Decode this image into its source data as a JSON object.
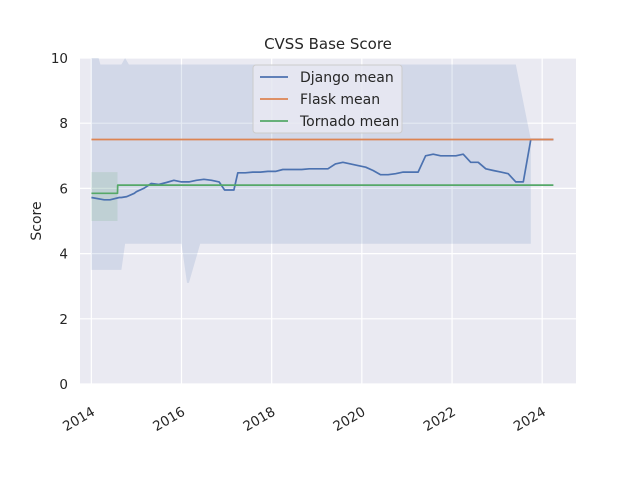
{
  "chart_data": {
    "type": "line",
    "title": "CVSS Base Score",
    "xlabel": "",
    "ylabel": "Score",
    "xlim": [
      "2013-10-01",
      "2024-10-01"
    ],
    "ylim": [
      0,
      10
    ],
    "xticks": [
      "2014",
      "2016",
      "2018",
      "2020",
      "2022",
      "2024"
    ],
    "yticks": [
      "0",
      "2",
      "4",
      "6",
      "8",
      "10"
    ],
    "grid": true,
    "legend_position": "top-center",
    "series": [
      {
        "name": "Django mean",
        "color": "#4c72b0",
        "x": [
          "2014-01-01",
          "2014-04-15",
          "2014-06-01",
          "2014-08-15",
          "2014-09-01",
          "2014-10-15",
          "2014-12-15",
          "2015-01-01",
          "2015-03-01",
          "2015-05-01",
          "2015-07-01",
          "2015-09-01",
          "2015-11-01",
          "2016-01-01",
          "2016-03-01",
          "2016-05-01",
          "2016-07-01",
          "2016-09-01",
          "2016-11-01",
          "2016-12-15",
          "2017-03-01",
          "2017-04-01",
          "2017-06-01",
          "2017-08-01",
          "2017-10-01",
          "2017-12-01",
          "2018-02-01",
          "2018-04-01",
          "2018-07-01",
          "2018-09-01",
          "2018-11-01",
          "2019-01-01",
          "2019-04-01",
          "2019-06-01",
          "2019-08-01",
          "2019-10-01",
          "2019-12-01",
          "2020-02-01",
          "2020-04-01",
          "2020-06-01",
          "2020-08-01",
          "2020-10-01",
          "2020-12-01",
          "2021-02-01",
          "2021-04-01",
          "2021-06-01",
          "2021-08-01",
          "2021-10-01",
          "2021-12-01",
          "2022-02-01",
          "2022-04-01",
          "2022-06-01",
          "2022-08-01",
          "2022-10-01",
          "2022-12-01",
          "2023-02-01",
          "2023-04-01",
          "2023-06-01",
          "2023-08-01",
          "2023-10-01",
          "2024-04-01"
        ],
        "y": [
          5.72,
          5.65,
          5.65,
          5.72,
          5.72,
          5.75,
          5.85,
          5.9,
          6.0,
          6.15,
          6.12,
          6.18,
          6.25,
          6.2,
          6.2,
          6.25,
          6.28,
          6.25,
          6.2,
          5.95,
          5.95,
          6.48,
          6.48,
          6.5,
          6.5,
          6.52,
          6.52,
          6.58,
          6.58,
          6.58,
          6.6,
          6.6,
          6.6,
          6.75,
          6.8,
          6.75,
          6.7,
          6.65,
          6.55,
          6.42,
          6.42,
          6.45,
          6.5,
          6.5,
          6.5,
          7.0,
          7.05,
          7.0,
          7.0,
          7.0,
          7.05,
          6.8,
          6.8,
          6.6,
          6.55,
          6.5,
          6.45,
          6.2,
          6.2,
          7.5,
          7.5
        ]
      },
      {
        "name": "Flask mean",
        "color": "#dd8452",
        "x": [
          "2014-01-01",
          "2024-04-01"
        ],
        "y": [
          7.5,
          7.5
        ]
      },
      {
        "name": "Tornado mean",
        "color": "#55a868",
        "x": [
          "2014-01-01",
          "2014-08-01",
          "2014-08-02",
          "2024-04-01"
        ],
        "y": [
          5.85,
          5.85,
          6.1,
          6.1
        ]
      }
    ],
    "bands": [
      {
        "series": "Django mean",
        "color": "#4c72b0",
        "x": [
          "2014-01-01",
          "2014-03-01",
          "2014-03-15",
          "2014-09-01",
          "2014-10-01",
          "2014-11-01",
          "2015-03-01",
          "2015-06-01",
          "2016-01-01",
          "2016-02-15",
          "2016-03-01",
          "2016-06-01",
          "2017-03-01",
          "2020-01-01",
          "2023-06-01",
          "2023-10-01"
        ],
        "upper": [
          10,
          10,
          9.8,
          9.8,
          10,
          9.8,
          9.8,
          9.8,
          9.8,
          9.8,
          9.8,
          9.8,
          9.8,
          9.8,
          9.8,
          7.5
        ],
        "lower": [
          3.5,
          3.5,
          3.5,
          3.5,
          4.3,
          4.3,
          4.3,
          4.3,
          4.3,
          3.1,
          3.1,
          4.3,
          4.3,
          4.3,
          4.3,
          4.3
        ]
      },
      {
        "series": "Tornado mean",
        "color": "#55a868",
        "x": [
          "2014-01-01",
          "2014-08-01"
        ],
        "upper": [
          6.5,
          6.5
        ],
        "lower": [
          5.0,
          5.0
        ]
      }
    ]
  }
}
